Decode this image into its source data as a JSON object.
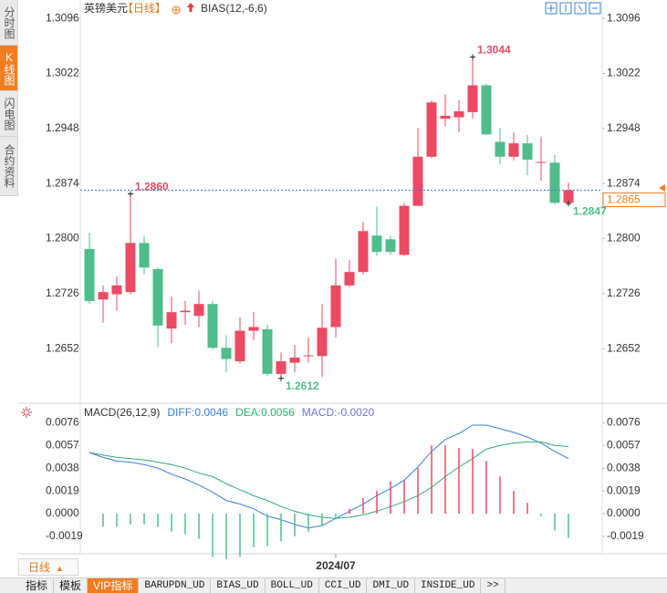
{
  "header": {
    "symbol": "英镑美元",
    "period": "【日线】",
    "indicator": "BIAS(12,-6,6)"
  },
  "sidebar": [
    "分时图",
    "K线图",
    "闪电图",
    "合约资料"
  ],
  "period_tab": "日线",
  "toolbar": [
    "指标",
    "模板",
    "VIP指标",
    "BARUPDN_UD",
    "BIAS_UD",
    "BOLL_UD",
    "CCI_UD",
    "DMI_UD",
    "INSIDE_UD",
    ">>"
  ],
  "chart_data": [
    {
      "type": "candlestick",
      "up_color": "#ec4a63",
      "down_color": "#4fbd8b",
      "open": [
        1.2786,
        1.2718,
        1.2725,
        1.2728,
        1.2794,
        1.2759,
        1.2679,
        1.2701,
        1.2696,
        1.2712,
        1.2653,
        1.2635,
        1.2676,
        1.2678,
        1.2618,
        1.2633,
        1.2642,
        1.2642,
        1.2681,
        1.2737,
        1.2755,
        1.2804,
        1.2799,
        1.2778,
        1.2844,
        1.291,
        1.2961,
        1.2963,
        1.297,
        1.3006,
        1.293,
        1.291,
        1.2928,
        1.2902,
        1.2902,
        1.2848
      ],
      "high": [
        1.2808,
        1.2737,
        1.2749,
        1.286,
        1.2804,
        1.2761,
        1.2722,
        1.2716,
        1.273,
        1.2716,
        1.267,
        1.2694,
        1.2701,
        1.2684,
        1.2647,
        1.2657,
        1.2667,
        1.2712,
        1.2773,
        1.2771,
        1.2822,
        1.2843,
        1.2804,
        1.2848,
        1.2949,
        1.2986,
        1.2994,
        1.2986,
        1.3044,
        1.3008,
        1.2949,
        1.2943,
        1.2939,
        1.2937,
        1.2912,
        1.2875
      ],
      "low": [
        1.2712,
        1.2687,
        1.2703,
        1.2725,
        1.2752,
        1.2654,
        1.2659,
        1.2684,
        1.2681,
        1.2651,
        1.262,
        1.2632,
        1.2663,
        1.2615,
        1.2612,
        1.262,
        1.2633,
        1.2614,
        1.2667,
        1.2735,
        1.2752,
        1.2777,
        1.2778,
        1.2777,
        1.2844,
        1.2908,
        1.2951,
        1.2943,
        1.2961,
        1.2939,
        1.29,
        1.2905,
        1.2885,
        1.2878,
        1.2846,
        1.2847
      ],
      "close": [
        1.2716,
        1.2728,
        1.2737,
        1.2794,
        1.2761,
        1.2683,
        1.2701,
        1.2703,
        1.2712,
        1.2653,
        1.2638,
        1.2676,
        1.2681,
        1.2618,
        1.2635,
        1.264,
        1.2643,
        1.268,
        1.2737,
        1.2755,
        1.281,
        1.2782,
        1.2782,
        1.2844,
        1.291,
        1.2983,
        1.2965,
        1.2971,
        1.3006,
        1.294,
        1.291,
        1.2928,
        1.2906,
        1.2903,
        1.2848,
        1.2865
      ],
      "ylim": [
        1.2581,
        1.3106
      ],
      "yticks": [
        1.2652,
        1.2726,
        {
          "value": 1.28,
          "label": "1.2800"
        },
        1.2874,
        1.2948,
        1.3022,
        1.3096
      ],
      "annotations": [
        1.3044,
        {
          "value": 1.286,
          "label": "1.2860"
        },
        1.2612,
        1.2847
      ],
      "last_price": 1.2865
    },
    {
      "type": "macd",
      "title": "MACD(26,12,9)",
      "categories": [
        null,
        null,
        null,
        null,
        null,
        null,
        null,
        null,
        null,
        null,
        null,
        null,
        null,
        null,
        null,
        null,
        null,
        null,
        "2024/07",
        null,
        null,
        null,
        null,
        null,
        null,
        null,
        null,
        null,
        null,
        null,
        null,
        null,
        null,
        null,
        null,
        null
      ],
      "ylim": [
        -0.0032,
        0.009
      ],
      "yticks": [
        -0.0019,
        {
          "value": 0,
          "label": "0.0000"
        },
        0.0019,
        0.0038,
        0.0057,
        0.0076
      ],
      "series": [
        {
          "name": "DIFF:0.0046",
          "type": "line",
          "color": "#3a7fd8",
          "values": [
            0.0051,
            0.0047,
            0.0044,
            0.0043,
            0.0041,
            0.0038,
            0.0033,
            0.0029,
            0.0024,
            0.0018,
            0.0011,
            0.0008,
            0.0004,
            -0.0002,
            -0.0005,
            -0.0009,
            -0.0012,
            -0.001,
            -0.0004,
            0.0002,
            0.0008,
            0.0015,
            0.0021,
            0.0028,
            0.0039,
            0.0052,
            0.0062,
            0.0067,
            0.0074,
            0.0074,
            0.0071,
            0.0068,
            0.0064,
            0.0059,
            0.0052,
            0.0046
          ]
        },
        {
          "name": "DEA:0.0056",
          "type": "line",
          "color": "#2fae78",
          "values": [
            0.0051,
            0.0049,
            0.0047,
            0.0046,
            0.0045,
            0.0043,
            0.0041,
            0.0038,
            0.0034,
            0.0031,
            0.0025,
            0.002,
            0.0015,
            0.0011,
            0.0006,
            0.0002,
            -0.0001,
            -0.0003,
            -0.0004,
            -0.0003,
            -0.0001,
            0.0002,
            0.0006,
            0.001,
            0.0015,
            0.0022,
            0.0031,
            0.0039,
            0.0046,
            0.0054,
            0.0057,
            0.0059,
            0.006,
            0.006,
            0.0057,
            0.0056
          ]
        },
        {
          "name": "MACD:-0.0020",
          "type": "bar",
          "color": "#ec4a63",
          "negative_color": "#4fbd8b",
          "label_color": "#6f74d6",
          "values": [
            null,
            -0.0011,
            -0.0011,
            -0.0009,
            -0.0009,
            -0.0011,
            -0.0015,
            -0.0017,
            -0.0021,
            -0.0036,
            -0.0038,
            -0.0036,
            -0.0028,
            -0.0027,
            -0.0023,
            -0.0019,
            -0.0015,
            -0.001,
            -0.0004,
            0.0004,
            0.0013,
            0.0019,
            0.0027,
            0.0028,
            0.0038,
            0.0057,
            0.0057,
            0.0055,
            0.0054,
            0.0044,
            0.0031,
            0.0019,
            0.0009,
            -0.0002,
            -0.0014,
            -0.002
          ]
        }
      ]
    }
  ]
}
